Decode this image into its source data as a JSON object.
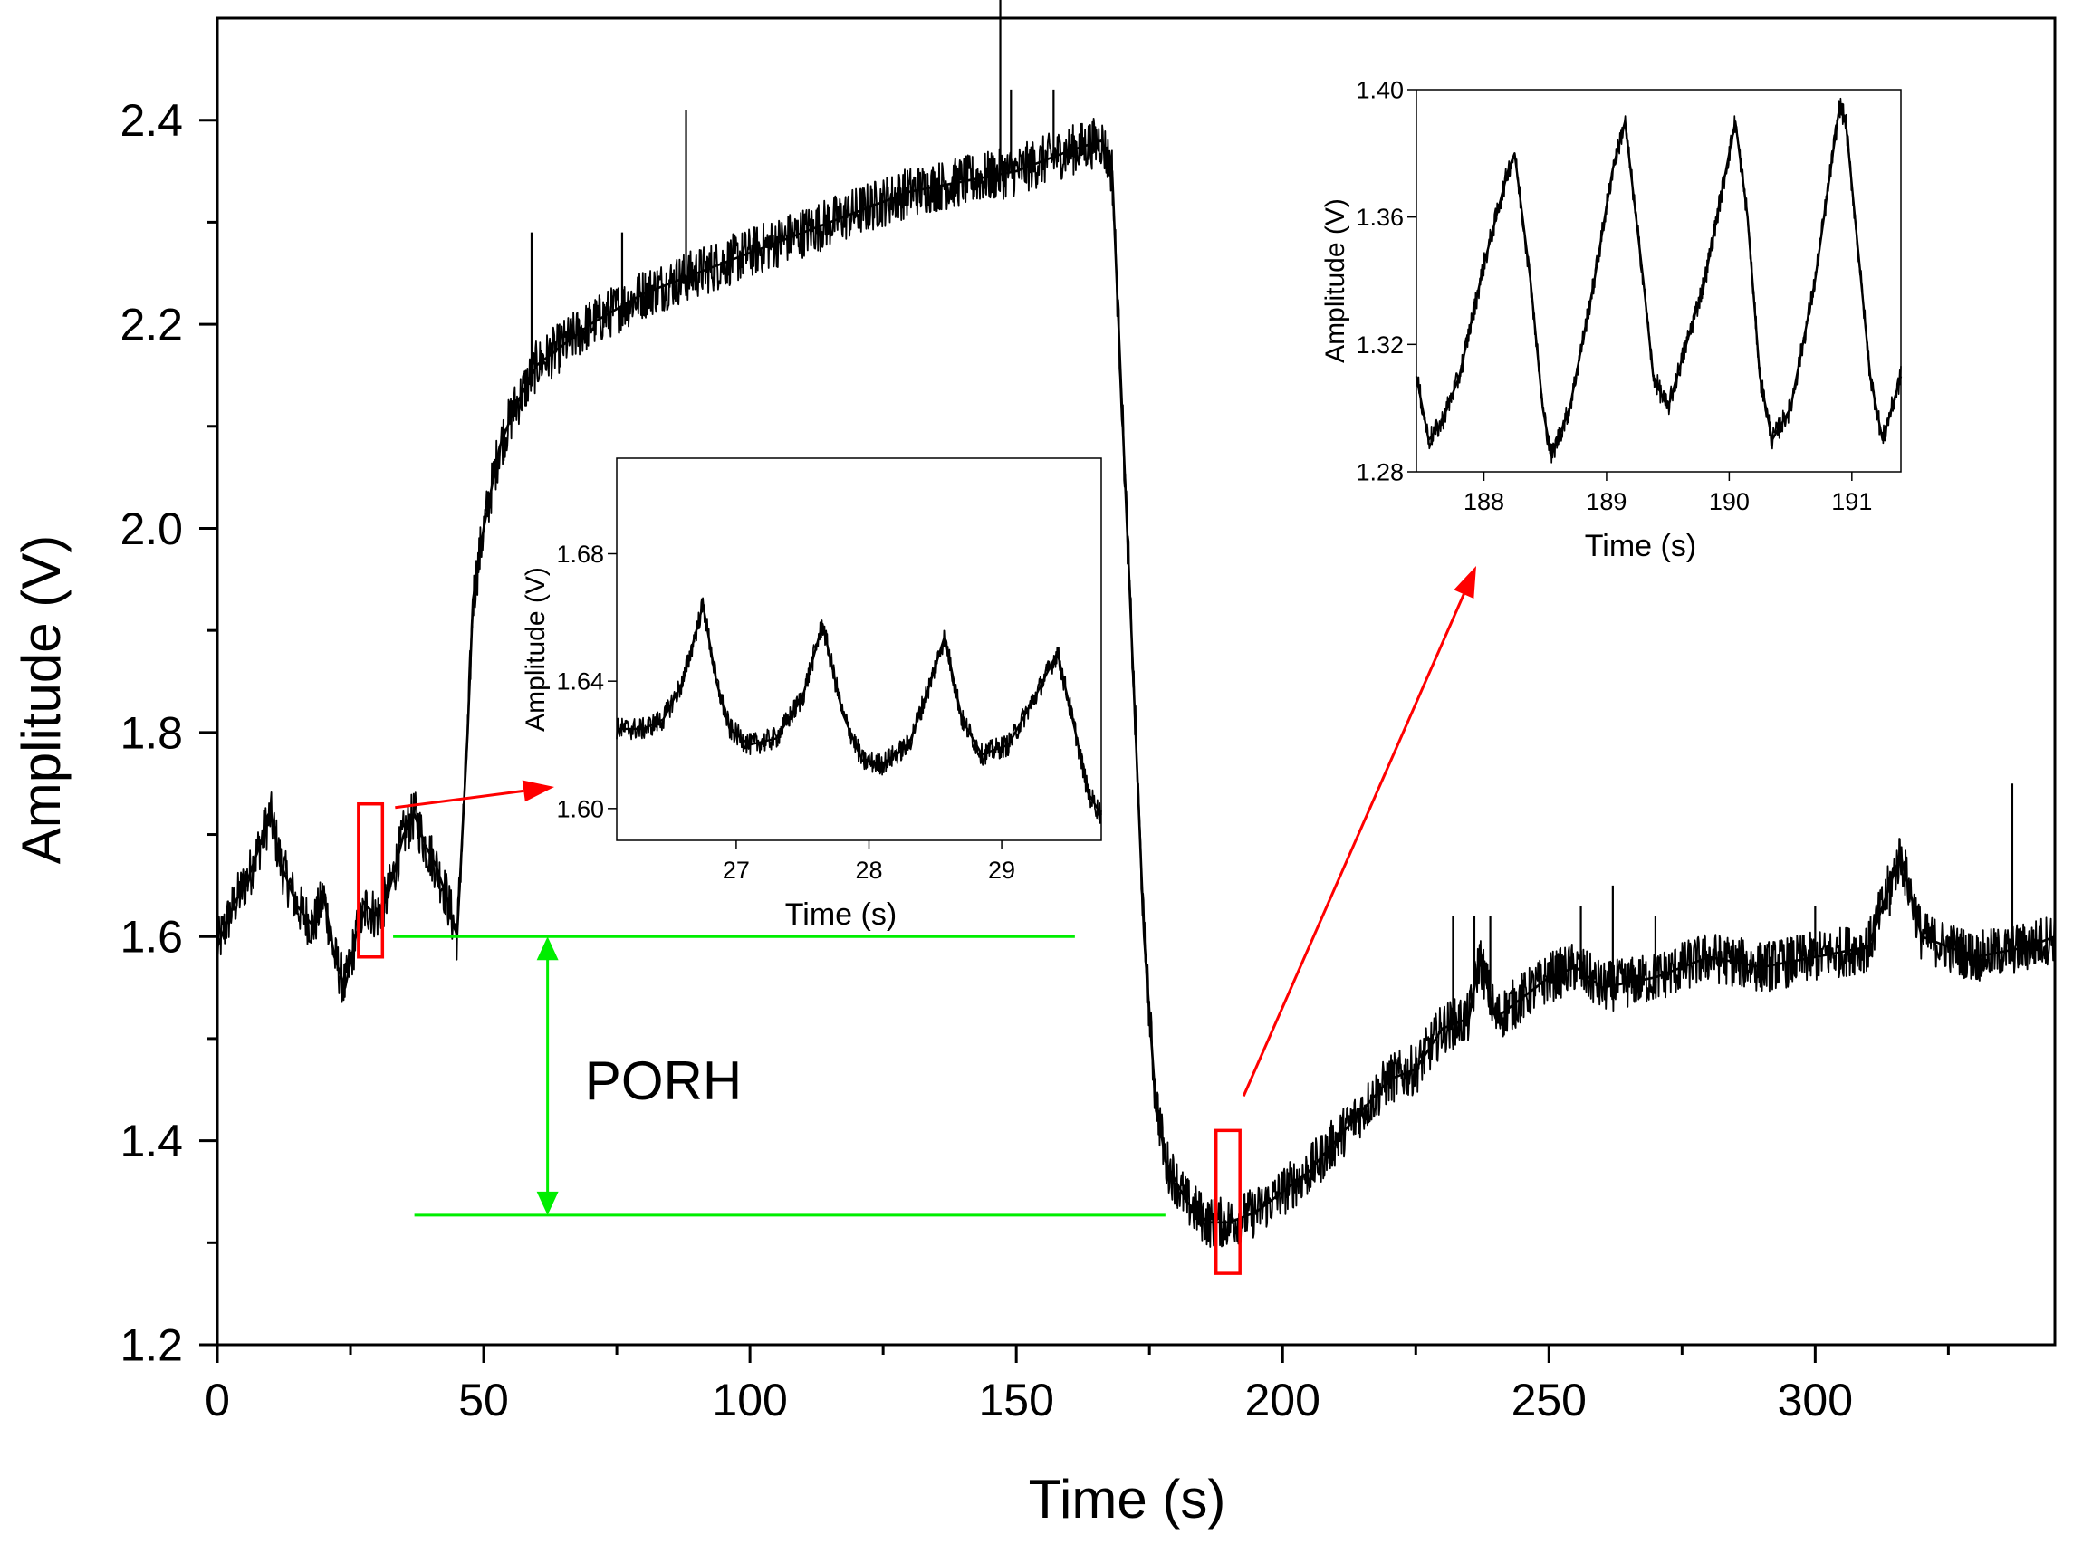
{
  "chart_data": [
    {
      "id": "main",
      "type": "line",
      "title": "",
      "xlabel": "Time (s)",
      "ylabel": "Amplitude (V)",
      "xlim": [
        0,
        345
      ],
      "ylim": [
        1.2,
        2.5
      ],
      "x_ticks": [
        0,
        50,
        100,
        150,
        200,
        250,
        300
      ],
      "y_ticks": [
        1.2,
        1.4,
        1.6,
        1.8,
        2.0,
        2.2,
        2.4
      ],
      "x_tick_labels": [
        "0",
        "50",
        "100",
        "150",
        "200",
        "250",
        "300"
      ],
      "y_tick_labels": [
        "1.2",
        "1.4",
        "1.6",
        "1.8",
        "2.0",
        "2.2",
        "2.4"
      ],
      "series": [
        {
          "name": "Amplitude",
          "color": "#000000",
          "noise": 0.025,
          "points": [
            [
              0,
              1.59
            ],
            [
              3,
              1.63
            ],
            [
              6,
              1.66
            ],
            [
              8,
              1.69
            ],
            [
              10,
              1.72
            ],
            [
              12,
              1.67
            ],
            [
              15,
              1.63
            ],
            [
              18,
              1.61
            ],
            [
              20,
              1.64
            ],
            [
              22,
              1.58
            ],
            [
              24,
              1.55
            ],
            [
              26,
              1.6
            ],
            [
              28,
              1.63
            ],
            [
              30,
              1.62
            ],
            [
              32,
              1.64
            ],
            [
              35,
              1.7
            ],
            [
              37,
              1.72
            ],
            [
              39,
              1.69
            ],
            [
              41,
              1.67
            ],
            [
              43,
              1.64
            ],
            [
              45,
              1.6
            ],
            [
              46,
              1.7
            ],
            [
              47,
              1.8
            ],
            [
              48,
              1.93
            ],
            [
              50,
              2.0
            ],
            [
              53,
              2.08
            ],
            [
              56,
              2.12
            ],
            [
              60,
              2.16
            ],
            [
              65,
              2.18
            ],
            [
              70,
              2.2
            ],
            [
              80,
              2.23
            ],
            [
              90,
              2.25
            ],
            [
              100,
              2.27
            ],
            [
              110,
              2.29
            ],
            [
              120,
              2.31
            ],
            [
              130,
              2.33
            ],
            [
              140,
              2.34
            ],
            [
              150,
              2.35
            ],
            [
              160,
              2.37
            ],
            [
              166,
              2.38
            ],
            [
              168,
              2.35
            ],
            [
              170,
              2.1
            ],
            [
              172,
              1.85
            ],
            [
              174,
              1.6
            ],
            [
              176,
              1.45
            ],
            [
              178,
              1.38
            ],
            [
              182,
              1.34
            ],
            [
              186,
              1.32
            ],
            [
              190,
              1.32
            ],
            [
              195,
              1.33
            ],
            [
              200,
              1.35
            ],
            [
              205,
              1.37
            ],
            [
              210,
              1.4
            ],
            [
              215,
              1.43
            ],
            [
              220,
              1.46
            ],
            [
              225,
              1.47
            ],
            [
              230,
              1.51
            ],
            [
              235,
              1.52
            ],
            [
              237,
              1.58
            ],
            [
              240,
              1.52
            ],
            [
              245,
              1.54
            ],
            [
              250,
              1.56
            ],
            [
              255,
              1.57
            ],
            [
              260,
              1.55
            ],
            [
              270,
              1.56
            ],
            [
              280,
              1.58
            ],
            [
              290,
              1.57
            ],
            [
              300,
              1.58
            ],
            [
              310,
              1.59
            ],
            [
              316,
              1.68
            ],
            [
              320,
              1.6
            ],
            [
              330,
              1.58
            ],
            [
              340,
              1.59
            ],
            [
              345,
              1.6
            ]
          ]
        }
      ],
      "spikes": [
        [
          34,
          1.68
        ],
        [
          59,
          2.29
        ],
        [
          76,
          2.29
        ],
        [
          88,
          2.41
        ],
        [
          119,
          2.3
        ],
        [
          147,
          2.53
        ],
        [
          149,
          2.43
        ],
        [
          157,
          2.43
        ],
        [
          232,
          1.62
        ],
        [
          236,
          1.62
        ],
        [
          239,
          1.62
        ],
        [
          256,
          1.63
        ],
        [
          262,
          1.65
        ],
        [
          270,
          1.62
        ],
        [
          300,
          1.63
        ],
        [
          314,
          1.62
        ],
        [
          337,
          1.75
        ]
      ],
      "annotations": {
        "label": "PORH",
        "reference_lines": [
          {
            "y": 1.6,
            "x_start": 33,
            "x_end": 161,
            "color": "#00ee00"
          },
          {
            "y": 1.327,
            "x_start": 37,
            "x_end": 178,
            "color": "#00ee00"
          }
        ],
        "double_arrow": {
          "x": 62,
          "y_top": 1.6,
          "y_bottom": 1.327,
          "color": "#00ee00"
        },
        "zoom_boxes": [
          {
            "x_range": [
              26.5,
              31
            ],
            "y_range": [
              1.58,
              1.73
            ],
            "color": "#ff0000"
          },
          {
            "x_range": [
              187.5,
              192
            ],
            "y_range": [
              1.27,
              1.41
            ],
            "color": "#ff0000"
          }
        ]
      }
    },
    {
      "id": "inset_left",
      "type": "line",
      "xlabel": "Time (s)",
      "ylabel": "Amplitude (V)",
      "xlim": [
        26.1,
        29.75
      ],
      "ylim": [
        1.59,
        1.71
      ],
      "x_ticks": [
        27,
        28,
        29
      ],
      "y_ticks": [
        1.6,
        1.64,
        1.68
      ],
      "x_tick_labels": [
        "27",
        "28",
        "29"
      ],
      "y_tick_labels": [
        "1.60",
        "1.64",
        "1.68"
      ],
      "series": [
        {
          "name": "Amplitude",
          "color": "#000000",
          "noise": 0.0035,
          "points": [
            [
              26.1,
              1.625
            ],
            [
              26.3,
              1.625
            ],
            [
              26.45,
              1.628
            ],
            [
              26.6,
              1.64
            ],
            [
              26.7,
              1.656
            ],
            [
              26.75,
              1.664
            ],
            [
              26.85,
              1.64
            ],
            [
              26.95,
              1.625
            ],
            [
              27.1,
              1.62
            ],
            [
              27.3,
              1.622
            ],
            [
              27.5,
              1.635
            ],
            [
              27.65,
              1.658
            ],
            [
              27.8,
              1.63
            ],
            [
              27.95,
              1.615
            ],
            [
              28.1,
              1.614
            ],
            [
              28.3,
              1.62
            ],
            [
              28.45,
              1.638
            ],
            [
              28.57,
              1.654
            ],
            [
              28.7,
              1.628
            ],
            [
              28.85,
              1.617
            ],
            [
              29.05,
              1.62
            ],
            [
              29.25,
              1.635
            ],
            [
              29.42,
              1.649
            ],
            [
              29.55,
              1.625
            ],
            [
              29.65,
              1.605
            ],
            [
              29.75,
              1.598
            ]
          ]
        }
      ]
    },
    {
      "id": "inset_right",
      "type": "line",
      "xlabel": "Time (s)",
      "ylabel": "Amplitude (V)",
      "xlim": [
        187.45,
        191.4
      ],
      "ylim": [
        1.28,
        1.4
      ],
      "x_ticks": [
        188,
        189,
        190,
        191
      ],
      "y_ticks": [
        1.28,
        1.32,
        1.36,
        1.4
      ],
      "x_tick_labels": [
        "188",
        "189",
        "190",
        "191"
      ],
      "y_tick_labels": [
        "1.28",
        "1.32",
        "1.36",
        "1.40"
      ],
      "series": [
        {
          "name": "Amplitude",
          "color": "#000000",
          "noise": 0.0035,
          "points": [
            [
              187.45,
              1.31
            ],
            [
              187.55,
              1.29
            ],
            [
              187.65,
              1.295
            ],
            [
              187.8,
              1.31
            ],
            [
              188.0,
              1.345
            ],
            [
              188.2,
              1.375
            ],
            [
              188.25,
              1.38
            ],
            [
              188.38,
              1.34
            ],
            [
              188.48,
              1.3
            ],
            [
              188.55,
              1.285
            ],
            [
              188.7,
              1.3
            ],
            [
              188.9,
              1.34
            ],
            [
              189.05,
              1.375
            ],
            [
              189.15,
              1.39
            ],
            [
              189.3,
              1.34
            ],
            [
              189.38,
              1.31
            ],
            [
              189.5,
              1.3
            ],
            [
              189.65,
              1.32
            ],
            [
              189.8,
              1.34
            ],
            [
              189.95,
              1.37
            ],
            [
              190.05,
              1.39
            ],
            [
              190.15,
              1.36
            ],
            [
              190.25,
              1.31
            ],
            [
              190.35,
              1.29
            ],
            [
              190.5,
              1.3
            ],
            [
              190.7,
              1.34
            ],
            [
              190.9,
              1.395
            ],
            [
              190.95,
              1.39
            ],
            [
              191.05,
              1.35
            ],
            [
              191.15,
              1.31
            ],
            [
              191.25,
              1.29
            ],
            [
              191.4,
              1.31
            ]
          ]
        }
      ]
    }
  ]
}
